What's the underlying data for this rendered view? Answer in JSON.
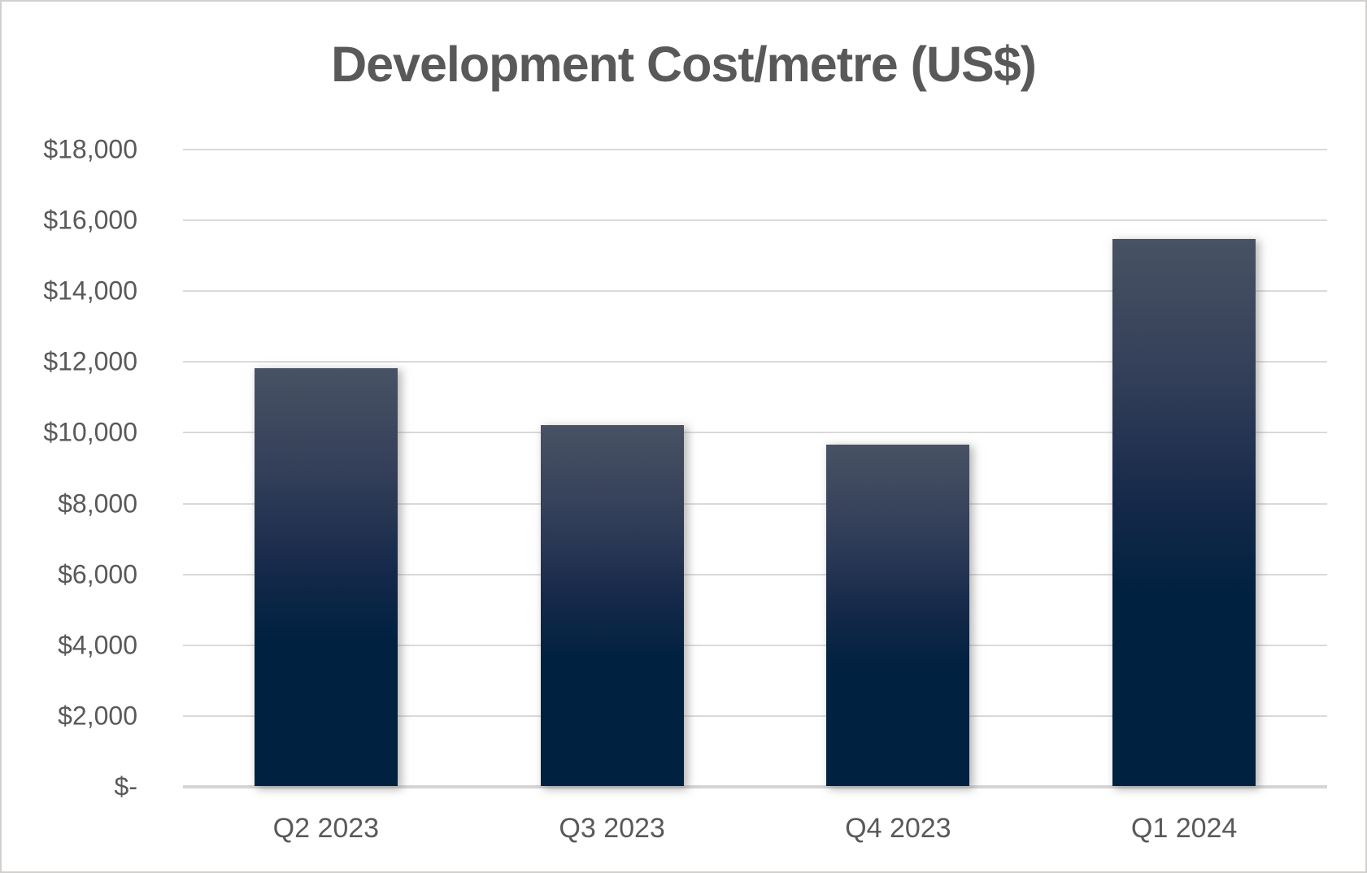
{
  "chart_data": {
    "type": "bar",
    "title": "Development Cost/metre (US$)",
    "categories": [
      "Q2 2023",
      "Q3 2023",
      "Q4 2023",
      "Q1 2024"
    ],
    "values": [
      11800,
      10200,
      9650,
      15450
    ],
    "xlabel": "",
    "ylabel": "",
    "ylim": [
      0,
      18000
    ],
    "y_ticks": [
      {
        "value": 0,
        "label": "$-"
      },
      {
        "value": 2000,
        "label": "$2,000"
      },
      {
        "value": 4000,
        "label": "$4,000"
      },
      {
        "value": 6000,
        "label": "$6,000"
      },
      {
        "value": 8000,
        "label": "$8,000"
      },
      {
        "value": 10000,
        "label": "$10,000"
      },
      {
        "value": 12000,
        "label": "$12,000"
      },
      {
        "value": 14000,
        "label": "$14,000"
      },
      {
        "value": 16000,
        "label": "$16,000"
      },
      {
        "value": 18000,
        "label": "$18,000"
      }
    ],
    "grid": true,
    "legend": false,
    "colors": {
      "title_text": "#595959",
      "axis_text": "#595959",
      "gridline": "#dadada",
      "axis_line": "#d5d5d5",
      "frame_border": "#d2cfcf",
      "background": "#ffffff",
      "bar_gradient_stops": [
        [
          "#485264",
          "0%"
        ],
        [
          "#333f59",
          "25%"
        ],
        [
          "#16294a",
          "48%"
        ],
        [
          "#002140",
          "65%"
        ],
        [
          "#002140",
          "100%"
        ]
      ]
    }
  }
}
